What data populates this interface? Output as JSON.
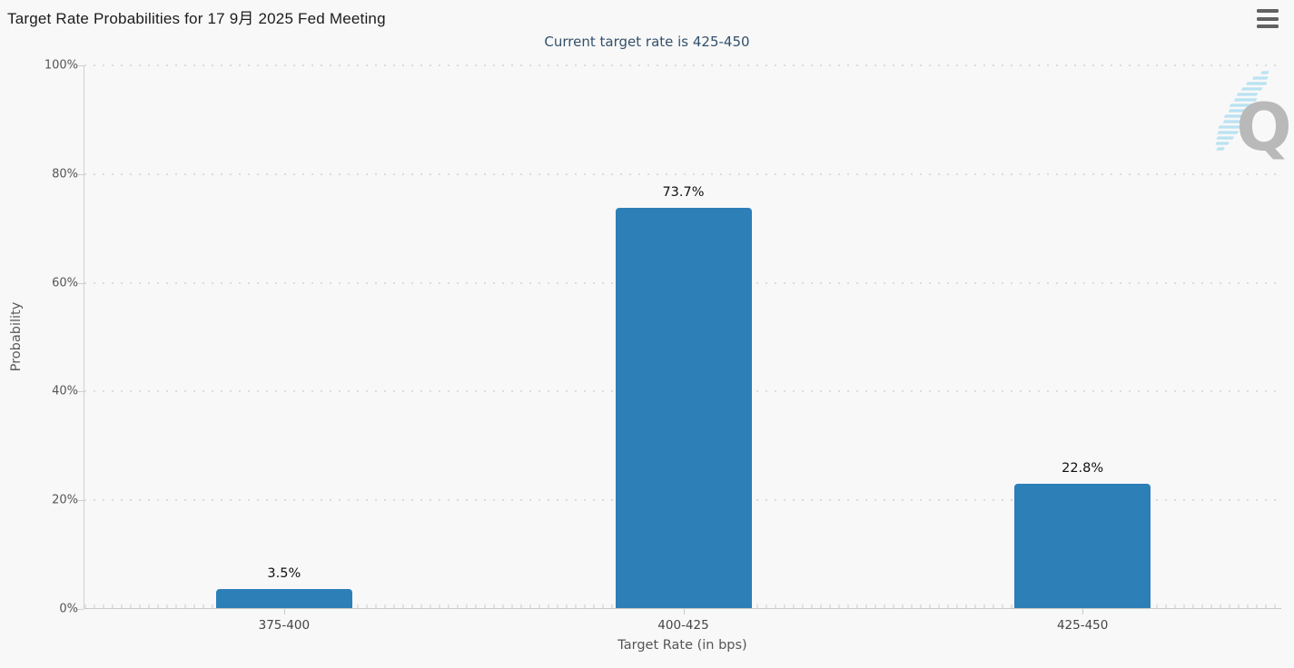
{
  "header": {
    "title": "Target Rate Probabilities for 17 9月 2025 Fed Meeting",
    "subtitle": "Current target rate is 425-450"
  },
  "chart_data": {
    "type": "bar",
    "title": "Target Rate Probabilities for 17 9月 2025 Fed Meeting",
    "subtitle": "Current target rate is 425-450",
    "categories": [
      "375-400",
      "400-425",
      "425-450"
    ],
    "values": [
      3.5,
      73.7,
      22.8
    ],
    "value_labels": [
      "3.5%",
      "73.7%",
      "22.8%"
    ],
    "xlabel": "Target Rate (in bps)",
    "ylabel": "Probability",
    "ylim": [
      0,
      100
    ],
    "ytick_values": [
      0,
      20,
      40,
      60,
      80,
      100
    ],
    "ytick_labels": [
      "0%",
      "20%",
      "40%",
      "60%",
      "80%",
      "100%"
    ],
    "grid": "dotted-horizontal",
    "legend_position": "none",
    "bar_color": "#2d7fb8",
    "subtitle_color": "#33506b",
    "background_color": "#f8f8f8"
  },
  "watermark": {
    "icon": "quikstrike-q-logo",
    "letter": "Q"
  },
  "menu": {
    "icon": "hamburger-icon"
  }
}
